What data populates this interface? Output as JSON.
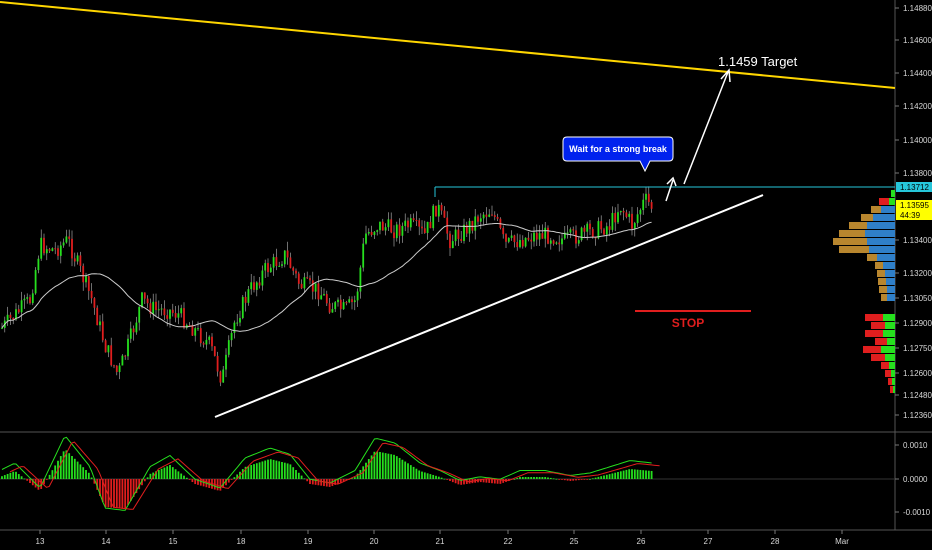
{
  "chart_data": {
    "type": "candlestick",
    "price_axis": {
      "ticks": [
        "1.14880",
        "1.14600",
        "1.14400",
        "1.14200",
        "1.14000",
        "1.13800",
        "1.13400",
        "1.13200",
        "1.13050",
        "1.12900",
        "1.12750",
        "1.12600",
        "1.12480",
        "1.12360"
      ],
      "ylim": [
        1.123,
        1.1492
      ]
    },
    "osc_axis": {
      "ticks": [
        "0.0010",
        "0.0000",
        "-0.0010"
      ]
    },
    "time_axis": {
      "ticks": [
        "13",
        "14",
        "15",
        "18",
        "19",
        "20",
        "21",
        "22",
        "25",
        "26",
        "27",
        "28",
        "Mar"
      ]
    },
    "price_tags": [
      {
        "label": "1.13712",
        "value": 1.13712,
        "bg": "#26c6da",
        "fg": "#000000"
      },
      {
        "label": "1.13595",
        "value": 1.13595,
        "bg": "#ffff00",
        "fg": "#000000"
      },
      {
        "label": "44:39",
        "value": 1.13505,
        "bg": "#ffff00",
        "fg": "#000000"
      }
    ],
    "annotations": {
      "target_label": "1.1459 Target",
      "callout_label": "Wait for a strong break",
      "stop_label": "STOP"
    },
    "colors": {
      "up": "#26e01e",
      "down": "#e01e1e",
      "trend_line": "#ffffff",
      "resistance": "#26c6da",
      "long_trend": "#ffd600",
      "moving_average": "#cccccc",
      "callout": "#0022ee",
      "volume_up": "#2f7fc8",
      "volume_down": "#b8862e"
    }
  }
}
